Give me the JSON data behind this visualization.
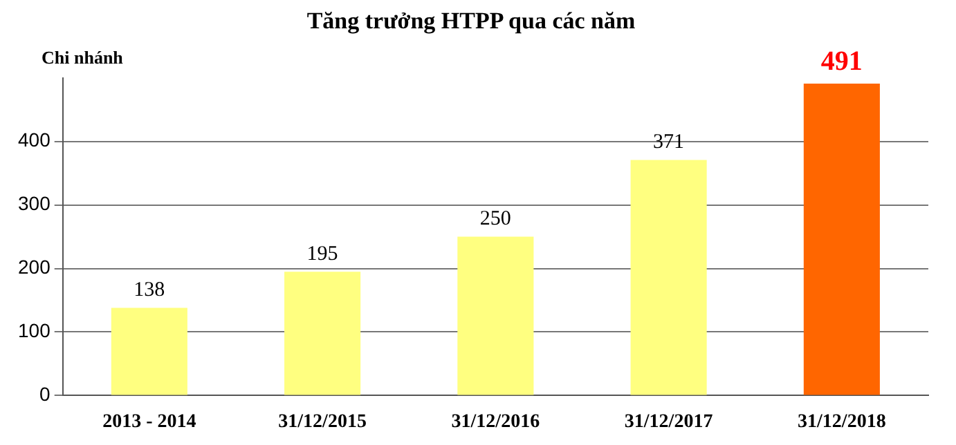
{
  "chart_data": {
    "type": "bar",
    "title": "Tăng trưởng HTPP qua các năm",
    "ylabel": "Chi nhánh",
    "categories": [
      "2013 - 2014",
      "31/12/2015",
      "31/12/2016",
      "31/12/2017",
      "31/12/2018"
    ],
    "values": [
      138,
      195,
      250,
      371,
      491
    ],
    "colors": [
      "#ffff80",
      "#ffff80",
      "#ffff80",
      "#ffff80",
      "#ff6600"
    ],
    "ylim": [
      0,
      500
    ],
    "yticks": [
      0,
      100,
      200,
      300,
      400
    ],
    "grid": "y",
    "data_labels": true,
    "legend": false
  }
}
